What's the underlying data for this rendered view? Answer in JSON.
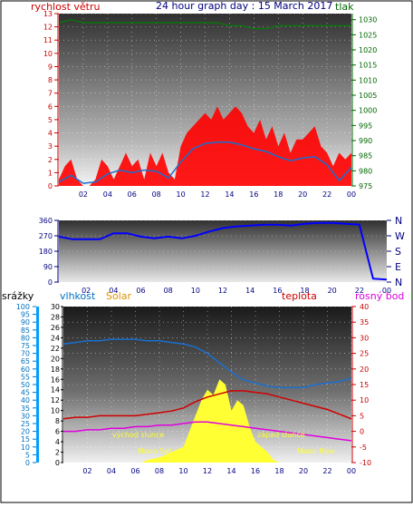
{
  "header": {
    "wind_label": "rychlost větru",
    "title": "24 hour graph day : 15 March 2017",
    "pressure_label": "tlak"
  },
  "colors": {
    "wind": "#ff0000",
    "wind_avg": "#1a6fd0",
    "pressure": "#008000",
    "direction": "#0000ff",
    "humidity": "#1a6fd0",
    "temperature": "#d00000",
    "dew_point": "#e000e0",
    "solar": "#ffff33",
    "rain": "#00a0ff",
    "solar_label": "#e09000",
    "top_axis_left": "#cc0000",
    "top_axis_right": "#006600",
    "dir_axis": "#000080",
    "humidity_axis": "#0070c0",
    "temp_axis": "#cc0000"
  },
  "wind_chart": {
    "chart_data": {
      "type": "line",
      "title": "24 hour graph day : 15 March 2017",
      "x_ticks": [
        "02",
        "04",
        "06",
        "08",
        "10",
        "12",
        "14",
        "16",
        "18",
        "20",
        "22",
        "00"
      ],
      "left_axis": {
        "label": "rychlost větru",
        "range": [
          0,
          13
        ],
        "ticks": [
          0,
          1,
          2,
          3,
          4,
          5,
          6,
          7,
          8,
          9,
          10,
          11,
          12,
          13
        ]
      },
      "right_axis": {
        "label": "tlak",
        "range": [
          975,
          1032
        ],
        "ticks": [
          975,
          980,
          985,
          990,
          995,
          1000,
          1005,
          1010,
          1015,
          1020,
          1025,
          1030
        ]
      },
      "series": [
        {
          "name": "rychlost větru",
          "x": [
            0.0,
            0.5,
            1.0,
            1.5,
            2.0,
            2.5,
            3.0,
            3.5,
            4.0,
            4.5,
            5.0,
            5.5,
            6.0,
            6.5,
            7.0,
            7.5,
            8.0,
            8.5,
            9.0,
            9.5,
            10.0,
            10.5,
            11.0,
            11.5,
            12.0,
            12.5,
            13.0,
            13.5,
            14.0,
            14.5,
            15.0,
            15.5,
            16.0,
            16.5,
            17.0,
            17.5,
            18.0,
            18.5,
            19.0,
            19.5,
            20.0,
            20.5,
            21.0,
            21.5,
            22.0,
            22.5,
            23.0,
            23.5,
            24.0
          ],
          "values": [
            0.5,
            1.5,
            2.0,
            0.5,
            0.0,
            0.0,
            0.5,
            2.0,
            1.5,
            0.5,
            1.5,
            2.5,
            1.5,
            2.0,
            0.5,
            2.5,
            1.5,
            2.5,
            1.0,
            0.5,
            3.0,
            4.0,
            4.5,
            5.0,
            5.5,
            5.0,
            6.0,
            5.0,
            5.5,
            6.0,
            5.5,
            4.5,
            4.0,
            5.0,
            3.5,
            4.5,
            3.0,
            4.0,
            2.5,
            3.5,
            3.5,
            4.0,
            4.5,
            3.0,
            2.5,
            1.5,
            2.5,
            2.0,
            2.5
          ]
        },
        {
          "name": "average",
          "x": [
            0.0,
            1.0,
            2.0,
            3.0,
            4.0,
            5.0,
            6.0,
            7.0,
            8.0,
            9.0,
            10.0,
            11.0,
            12.0,
            13.0,
            14.0,
            15.0,
            16.0,
            17.0,
            18.0,
            19.0,
            20.0,
            21.0,
            22.0,
            23.0,
            24.0
          ],
          "values": [
            0.3,
            0.8,
            0.2,
            0.3,
            0.9,
            1.2,
            1.0,
            1.2,
            1.1,
            0.6,
            1.8,
            2.8,
            3.2,
            3.3,
            3.3,
            3.1,
            2.8,
            2.6,
            2.2,
            1.9,
            2.1,
            2.2,
            1.6,
            0.4,
            1.4
          ]
        },
        {
          "name": "tlak",
          "x": [
            0.0,
            1.0,
            2.0,
            3.0,
            4.0,
            5.0,
            6.0,
            7.0,
            8.0,
            9.0,
            10.0,
            11.0,
            12.0,
            13.0,
            14.0,
            15.0,
            16.0,
            17.0,
            18.0,
            19.0,
            20.0,
            21.0,
            22.0,
            23.0,
            24.0
          ],
          "values": [
            1029,
            1030,
            1029,
            1029,
            1029,
            1029,
            1029,
            1029,
            1029,
            1029,
            1029,
            1029,
            1029,
            1029,
            1028,
            1028,
            1027,
            1027,
            1028,
            1028,
            1028,
            1028,
            1028,
            1028,
            1028
          ]
        }
      ]
    }
  },
  "direction_chart": {
    "chart_data": {
      "type": "line",
      "x_ticks": [
        "02",
        "04",
        "06",
        "08",
        "10",
        "12",
        "14",
        "16",
        "18",
        "20",
        "22",
        "00"
      ],
      "left_axis": {
        "range": [
          0,
          360
        ],
        "ticks": [
          0,
          90,
          180,
          270,
          360
        ]
      },
      "right_labels": [
        "N",
        "W",
        "S",
        "E",
        "N"
      ],
      "series": [
        {
          "name": "direction",
          "x": [
            0,
            1,
            2,
            3,
            4,
            5,
            6,
            7,
            8,
            9,
            10,
            11,
            12,
            13,
            14,
            15,
            16,
            17,
            18,
            19,
            20,
            21,
            22,
            23,
            24
          ],
          "values": [
            265,
            250,
            250,
            250,
            285,
            285,
            265,
            255,
            265,
            255,
            270,
            295,
            315,
            325,
            330,
            335,
            335,
            330,
            340,
            345,
            345,
            340,
            335,
            20,
            15
          ]
        }
      ]
    }
  },
  "bottom_chart": {
    "labels": {
      "rain": "srážky",
      "humidity": "vlhkost",
      "solar": "Solar",
      "temperature": "teplota",
      "dew_point": "rosný bod",
      "sunrise": "východ slunce",
      "sunset": "západ slunce",
      "moonset": "Moon Set",
      "moonrise": "Moon Rise"
    },
    "chart_data": {
      "type": "line",
      "x_ticks": [
        "02",
        "04",
        "06",
        "08",
        "10",
        "12",
        "14",
        "16",
        "18",
        "20",
        "22",
        "00"
      ],
      "axes": {
        "rain": {
          "range": [
            0,
            100
          ],
          "ticks": [
            0,
            5,
            10,
            15,
            20,
            25,
            30,
            35,
            40,
            45,
            50,
            55,
            60,
            65,
            70,
            75,
            80,
            85,
            90,
            95,
            100
          ]
        },
        "humidity": {
          "range": [
            0,
            30
          ],
          "ticks": [
            0,
            2,
            4,
            6,
            8,
            10,
            12,
            14,
            16,
            18,
            20,
            22,
            24,
            26,
            28,
            30
          ]
        },
        "temperature": {
          "range": [
            -10,
            40
          ],
          "ticks": [
            -10,
            -5,
            0,
            5,
            10,
            15,
            20,
            25,
            30,
            35,
            40
          ]
        }
      },
      "series": [
        {
          "name": "vlhkost",
          "axis": "rain",
          "x": [
            0,
            1,
            2,
            3,
            4,
            5,
            6,
            7,
            8,
            9,
            10,
            11,
            12,
            13,
            14,
            15,
            16,
            17,
            18,
            19,
            20,
            21,
            22,
            23,
            24
          ],
          "values": [
            76,
            77,
            78,
            78,
            79,
            79,
            79,
            78,
            78,
            77,
            76,
            74,
            70,
            64,
            58,
            53,
            51,
            49,
            48,
            48,
            48,
            50,
            51,
            52,
            54
          ]
        },
        {
          "name": "teplota",
          "axis": "temperature",
          "x": [
            0,
            1,
            2,
            3,
            4,
            5,
            6,
            7,
            8,
            9,
            10,
            11,
            12,
            13,
            14,
            15,
            16,
            17,
            18,
            19,
            20,
            21,
            22,
            23,
            24
          ],
          "values": [
            4,
            4.5,
            4.5,
            5,
            5,
            5,
            5,
            5.5,
            6,
            6.5,
            7.5,
            9.5,
            11,
            12,
            13,
            13,
            12.5,
            12,
            11,
            10,
            9,
            8,
            7,
            5.5,
            4
          ]
        },
        {
          "name": "rosný bod",
          "axis": "temperature",
          "x": [
            0,
            1,
            2,
            3,
            4,
            5,
            6,
            7,
            8,
            9,
            10,
            11,
            12,
            13,
            14,
            15,
            16,
            17,
            18,
            19,
            20,
            21,
            22,
            23,
            24
          ],
          "values": [
            0,
            0,
            0.5,
            0.5,
            1,
            1,
            1.5,
            1.5,
            2,
            2,
            2.5,
            3,
            3,
            2.5,
            2,
            1.5,
            1,
            0.5,
            0,
            -0.5,
            -1,
            -1.5,
            -2,
            -2.5,
            -3
          ]
        },
        {
          "name": "Solar",
          "axis": "humidity",
          "x": [
            6.5,
            7,
            8,
            9,
            10,
            10.5,
            11,
            11.5,
            12,
            12.5,
            13,
            13.5,
            14,
            14.5,
            15,
            15.5,
            16,
            16.5,
            17,
            17.5,
            18
          ],
          "values": [
            0,
            0.5,
            1,
            2,
            3,
            6,
            9,
            12,
            14,
            13,
            16,
            15,
            10,
            12,
            11,
            7,
            4,
            3,
            2,
            0.5,
            0
          ]
        }
      ]
    }
  }
}
